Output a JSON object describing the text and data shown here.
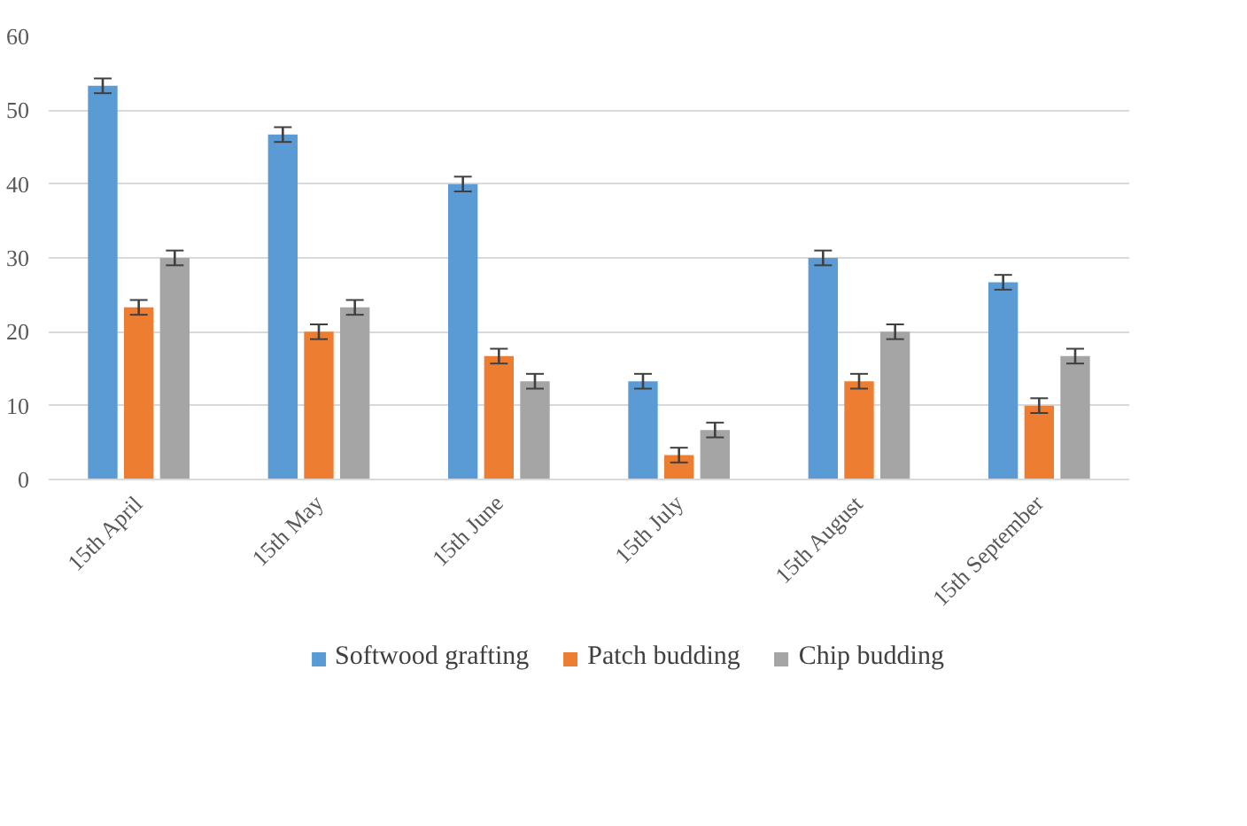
{
  "chart_data": {
    "type": "bar",
    "categories": [
      "15th April",
      "15th May",
      "15th June",
      "15th July",
      "15th August",
      "15th September"
    ],
    "series": [
      {
        "name": "Softwood grafting",
        "color": "#5b9bd5",
        "values": [
          53.3,
          46.7,
          40,
          13.3,
          30,
          26.7
        ],
        "errors": [
          1,
          1,
          1,
          1,
          1,
          1
        ]
      },
      {
        "name": "Patch budding",
        "color": "#ed7d31",
        "values": [
          23.3,
          20,
          16.7,
          3.3,
          13.3,
          10
        ],
        "errors": [
          1,
          1,
          1,
          1,
          1,
          1
        ]
      },
      {
        "name": "Chip budding",
        "color": "#a5a5a5",
        "values": [
          30,
          23.3,
          13.3,
          6.7,
          20,
          16.7
        ],
        "errors": [
          1,
          1,
          1,
          1,
          1,
          1
        ]
      }
    ],
    "ylim": [
      0,
      60
    ],
    "yticks": [
      0,
      10,
      20,
      30,
      40,
      50,
      60
    ],
    "grid": "y",
    "legend": "bottom"
  }
}
